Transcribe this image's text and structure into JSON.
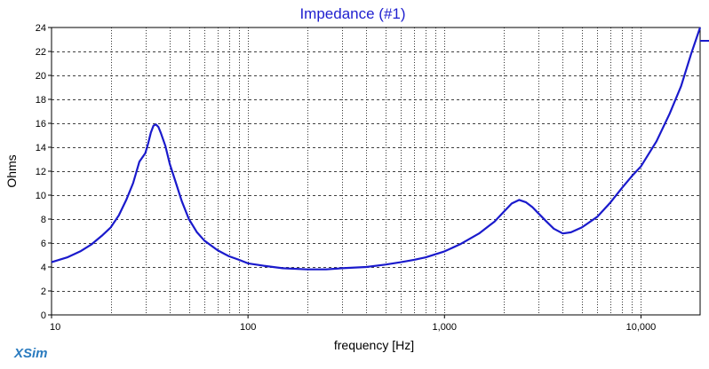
{
  "brand": "XSim",
  "chart_data": {
    "type": "line",
    "title": "Impedance (#1)",
    "xlabel": "frequency [Hz]",
    "ylabel": "Ohms",
    "xscale": "log",
    "xlim": [
      10,
      20000
    ],
    "ylim": [
      0,
      24
    ],
    "x_ticks": [
      10,
      100,
      1000,
      10000
    ],
    "x_tick_labels": [
      "10",
      "100",
      "1,000",
      "10,000"
    ],
    "y_ticks": [
      0,
      2,
      4,
      6,
      8,
      10,
      12,
      14,
      16,
      18,
      20,
      22,
      24
    ],
    "y_tick_labels": [
      "0",
      "2",
      "4",
      "6",
      "8",
      "10",
      "12",
      "14",
      "16",
      "18",
      "20",
      "22",
      "24"
    ],
    "grid": true,
    "colors": {
      "line": "#1a1acc",
      "title": "#1f1fcf",
      "brand": "#2a7bbf",
      "grid": "#000000"
    },
    "series": [
      {
        "values": [
          [
            10,
            4.4
          ],
          [
            12,
            4.8
          ],
          [
            14,
            5.3
          ],
          [
            16,
            5.9
          ],
          [
            18,
            6.6
          ],
          [
            20,
            7.3
          ],
          [
            22,
            8.3
          ],
          [
            24,
            9.6
          ],
          [
            26,
            11.0
          ],
          [
            28,
            12.8
          ],
          [
            30,
            13.5
          ],
          [
            31,
            14.3
          ],
          [
            32,
            15.2
          ],
          [
            33,
            15.8
          ],
          [
            34,
            15.9
          ],
          [
            35,
            15.7
          ],
          [
            36,
            15.2
          ],
          [
            38,
            14.1
          ],
          [
            40,
            12.6
          ],
          [
            43,
            11.0
          ],
          [
            46,
            9.5
          ],
          [
            50,
            8.0
          ],
          [
            55,
            6.9
          ],
          [
            60,
            6.2
          ],
          [
            70,
            5.4
          ],
          [
            80,
            4.9
          ],
          [
            90,
            4.6
          ],
          [
            100,
            4.3
          ],
          [
            120,
            4.1
          ],
          [
            150,
            3.9
          ],
          [
            200,
            3.8
          ],
          [
            250,
            3.8
          ],
          [
            300,
            3.9
          ],
          [
            400,
            4.0
          ],
          [
            500,
            4.2
          ],
          [
            600,
            4.4
          ],
          [
            700,
            4.6
          ],
          [
            800,
            4.8
          ],
          [
            1000,
            5.3
          ],
          [
            1200,
            5.9
          ],
          [
            1500,
            6.8
          ],
          [
            1800,
            7.8
          ],
          [
            2000,
            8.6
          ],
          [
            2200,
            9.3
          ],
          [
            2400,
            9.6
          ],
          [
            2600,
            9.4
          ],
          [
            2800,
            9.0
          ],
          [
            3000,
            8.5
          ],
          [
            3300,
            7.8
          ],
          [
            3600,
            7.2
          ],
          [
            4000,
            6.8
          ],
          [
            4400,
            6.9
          ],
          [
            5000,
            7.3
          ],
          [
            6000,
            8.2
          ],
          [
            7000,
            9.4
          ],
          [
            8000,
            10.6
          ],
          [
            9000,
            11.6
          ],
          [
            10000,
            12.4
          ],
          [
            12000,
            14.5
          ],
          [
            14000,
            16.8
          ],
          [
            16000,
            19.1
          ],
          [
            18000,
            21.8
          ],
          [
            20000,
            24.0
          ]
        ]
      }
    ]
  }
}
